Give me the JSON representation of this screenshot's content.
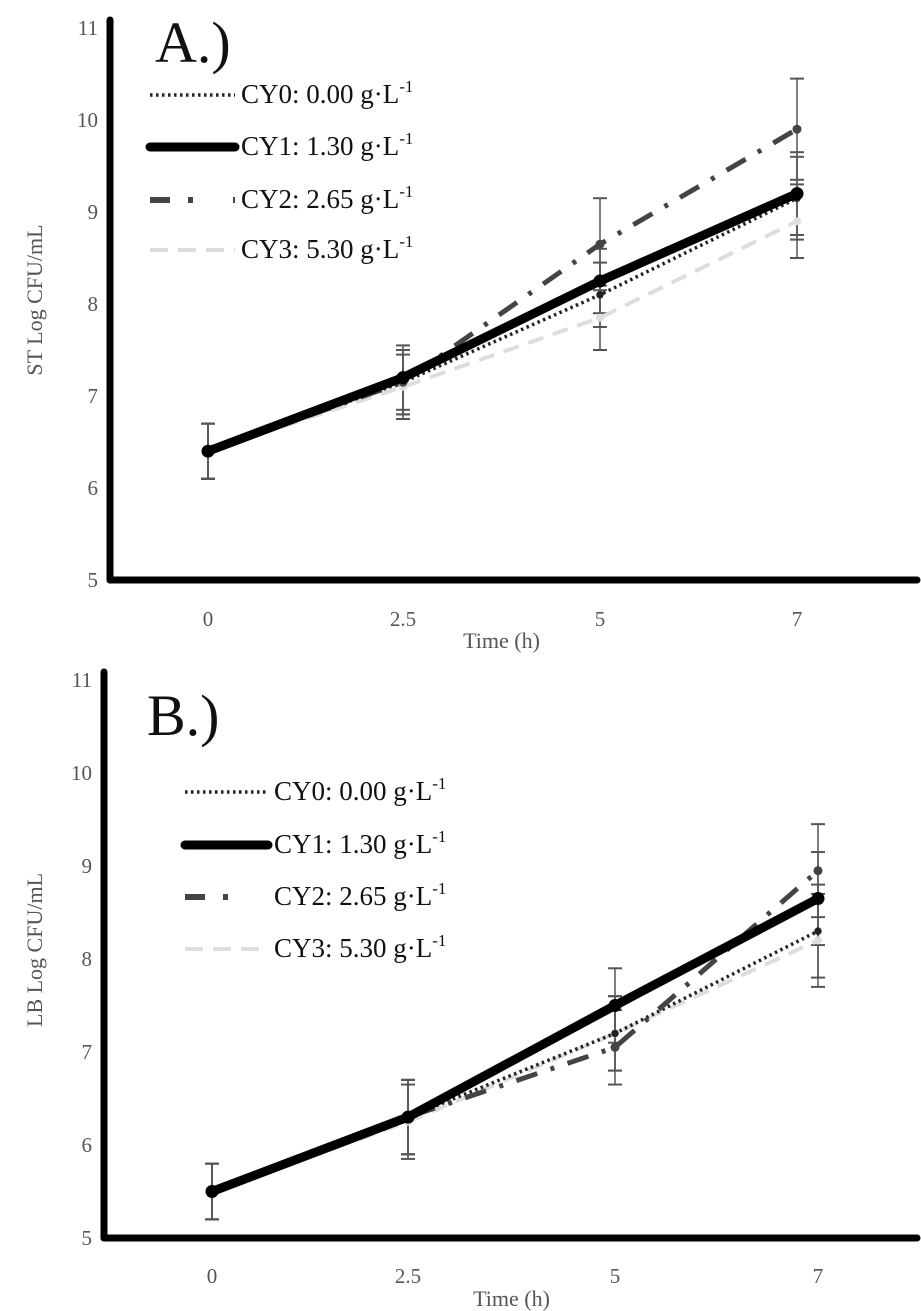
{
  "chart_data": [
    {
      "type": "line",
      "panel_label": "A.)",
      "xlabel": "Time (h)",
      "ylabel": "ST Log CFU/mL",
      "x": [
        0,
        2.5,
        5,
        7
      ],
      "x_tick_labels": [
        "0",
        "2.5",
        "5",
        "7"
      ],
      "y_ticks": [
        5,
        6,
        7,
        8,
        9,
        10,
        11
      ],
      "ylim": [
        5,
        11
      ],
      "grid": false,
      "legend_position": "top-left",
      "series": [
        {
          "key": "CY0",
          "name": "CY0: 0.00 g·L",
          "superscript": "-1",
          "style": "dotted",
          "color": "#222222",
          "values": [
            6.4,
            7.15,
            8.1,
            9.15
          ],
          "error": [
            0.3,
            0.35,
            0.35,
            0.45
          ]
        },
        {
          "key": "CY1",
          "name": "CY1:  1.30 g·L",
          "superscript": "-1",
          "style": "solid",
          "color": "#000000",
          "values": [
            6.4,
            7.2,
            8.25,
            9.2
          ],
          "error": [
            0.3,
            0.35,
            0.35,
            0.45
          ]
        },
        {
          "key": "CY2",
          "name": "CY2:  2.65 g·L",
          "superscript": "-1",
          "style": "dashdot",
          "color": "#444444",
          "values": [
            6.4,
            7.15,
            8.65,
            9.9
          ],
          "error": [
            0.3,
            0.35,
            0.5,
            0.55
          ]
        },
        {
          "key": "CY3",
          "name": "CY3: 5.30 g·L",
          "superscript": "-1",
          "style": "dashed",
          "color": "#dddddd",
          "values": [
            6.4,
            7.1,
            7.85,
            8.9
          ],
          "error": [
            0.3,
            0.35,
            0.35,
            0.4
          ]
        }
      ]
    },
    {
      "type": "line",
      "panel_label": "B.)",
      "xlabel": "Time (h)",
      "ylabel": "LB Log CFU/mL",
      "x": [
        0,
        2.5,
        5,
        7
      ],
      "x_tick_labels": [
        "0",
        "2.5",
        "5",
        "7"
      ],
      "y_ticks": [
        5,
        6,
        7,
        8,
        9,
        10,
        11
      ],
      "ylim": [
        5,
        11
      ],
      "grid": false,
      "legend_position": "top-left",
      "series": [
        {
          "key": "CY0",
          "name": "CY0: 0.00 g·L",
          "superscript": "-1",
          "style": "dotted",
          "color": "#222222",
          "values": [
            5.5,
            6.3,
            7.2,
            8.3
          ],
          "error": [
            0.3,
            0.4,
            0.4,
            0.5
          ]
        },
        {
          "key": "CY1",
          "name": "CY1:  1.30 g·L",
          "superscript": "-1",
          "style": "solid",
          "color": "#000000",
          "values": [
            5.5,
            6.3,
            7.5,
            8.65
          ],
          "error": [
            0.3,
            0.4,
            0.4,
            0.5
          ]
        },
        {
          "key": "CY2",
          "name": "CY2:  2.65 g·L",
          "superscript": "-1",
          "style": "dashdot",
          "color": "#444444",
          "values": [
            5.5,
            6.3,
            7.05,
            8.95
          ],
          "error": [
            0.3,
            0.4,
            0.4,
            0.5
          ]
        },
        {
          "key": "CY3",
          "name": "CY3: 5.30 g·L",
          "superscript": "-1",
          "style": "dashed",
          "color": "#dddddd",
          "values": [
            5.5,
            6.25,
            7.2,
            8.2
          ],
          "error": [
            0.3,
            0.4,
            0.4,
            0.5
          ]
        }
      ]
    }
  ]
}
